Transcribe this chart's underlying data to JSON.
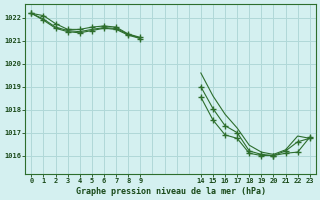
{
  "title": "Graphe pression niveau de la mer (hPa)",
  "bg_color": "#d4f0f0",
  "grid_color": "#b0d8d8",
  "line_color": "#2d6e2d",
  "marker_color": "#2d6e2d",
  "xlim": [
    -0.5,
    23.5
  ],
  "ylim": [
    1015.2,
    1022.6
  ],
  "yticks": [
    1016,
    1017,
    1018,
    1019,
    1020,
    1021,
    1022
  ],
  "xticks": [
    0,
    1,
    2,
    3,
    4,
    5,
    6,
    7,
    8,
    9,
    14,
    15,
    16,
    17,
    18,
    19,
    20,
    21,
    22,
    23
  ],
  "xtick_labels": [
    "0",
    "1",
    "2",
    "3",
    "4",
    "5",
    "6",
    "7",
    "8",
    "9",
    "14",
    "15",
    "16",
    "17",
    "18",
    "19",
    "20",
    "21",
    "22",
    "23"
  ],
  "series": [
    {
      "x": [
        0,
        1,
        2,
        3,
        4,
        5,
        6,
        7,
        8,
        9,
        14,
        15,
        16,
        17,
        18,
        19,
        20,
        21,
        22,
        23
      ],
      "y": [
        1022.2,
        1022.1,
        1021.75,
        1021.5,
        1021.5,
        1021.6,
        1021.65,
        1021.6,
        1021.3,
        1021.15,
        1018.55,
        1017.55,
        1016.9,
        1016.75,
        1016.1,
        1016.0,
        1016.0,
        1016.1,
        1016.15,
        1016.8
      ],
      "marker": "+"
    },
    {
      "x": [
        0,
        1,
        2,
        3,
        4,
        5,
        6,
        7,
        8,
        9,
        14,
        15,
        16,
        17,
        18,
        19,
        20,
        21,
        22,
        23
      ],
      "y": [
        1022.2,
        1021.9,
        1021.55,
        1021.4,
        1021.35,
        1021.45,
        1021.55,
        1021.5,
        1021.25,
        1021.1,
        1019.0,
        1018.05,
        1017.3,
        1017.0,
        1016.2,
        1016.05,
        1016.0,
        1016.2,
        1016.6,
        1016.75
      ],
      "marker": "+"
    },
    {
      "x": [
        0,
        1,
        2,
        3,
        4,
        5,
        6,
        7,
        8,
        9,
        14,
        15,
        16,
        17,
        18,
        19,
        20,
        21,
        22,
        23
      ],
      "y": [
        1022.2,
        1021.95,
        1021.6,
        1021.45,
        1021.4,
        1021.5,
        1021.58,
        1021.54,
        1021.28,
        1021.12,
        1019.6,
        1018.6,
        1017.8,
        1017.2,
        1016.45,
        1016.15,
        1016.05,
        1016.25,
        1016.85,
        1016.75
      ],
      "marker": null
    }
  ]
}
